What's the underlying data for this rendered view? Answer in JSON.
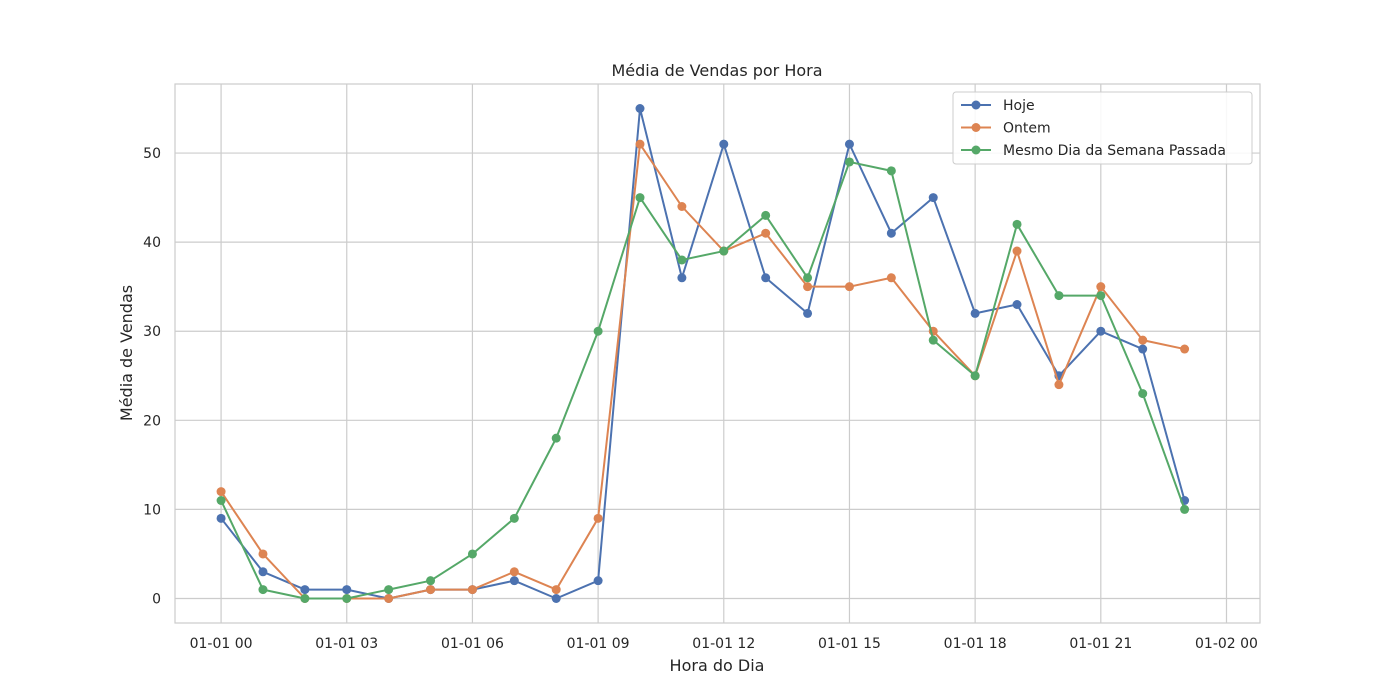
{
  "chart_data": {
    "type": "line",
    "title": "Média de Vendas por Hora",
    "xlabel": "Hora do Dia",
    "ylabel": "Média de Vendas",
    "x": [
      "00:00",
      "01:00",
      "02:00",
      "03:00",
      "04:00",
      "05:00",
      "06:00",
      "07:00",
      "08:00",
      "09:00",
      "10:00",
      "11:00",
      "12:00",
      "13:00",
      "14:00",
      "15:00",
      "16:00",
      "17:00",
      "18:00",
      "19:00",
      "20:00",
      "21:00",
      "22:00",
      "23:00"
    ],
    "x_tick_labels": [
      "01-01 00",
      "01-01 03",
      "01-01 06",
      "01-01 09",
      "01-01 12",
      "01-01 15",
      "01-01 18",
      "01-01 21",
      "01-02 00"
    ],
    "xlim_hours": [
      -1.1,
      24.8
    ],
    "y_ticks": [
      0,
      10,
      20,
      30,
      40,
      50
    ],
    "ylim": [
      -2.75,
      57.75
    ],
    "grid": true,
    "legend_position": "top-right",
    "series": [
      {
        "name": "Hoje",
        "color": "#4c72b0",
        "values": [
          9,
          3,
          1,
          1,
          0,
          1,
          1,
          2,
          0,
          2,
          55,
          36,
          51,
          36,
          32,
          51,
          41,
          45,
          32,
          33,
          25,
          30,
          28,
          11
        ]
      },
      {
        "name": "Ontem",
        "color": "#dd8452",
        "values": [
          12,
          5,
          0,
          0,
          0,
          1,
          1,
          3,
          1,
          9,
          51,
          44,
          39,
          41,
          35,
          35,
          36,
          30,
          25,
          39,
          24,
          35,
          29,
          28
        ]
      },
      {
        "name": "Mesmo Dia da Semana Passada",
        "color": "#55a868",
        "values": [
          11,
          1,
          0,
          0,
          1,
          2,
          5,
          9,
          18,
          30,
          45,
          38,
          39,
          43,
          36,
          49,
          48,
          29,
          25,
          42,
          34,
          34,
          23,
          10
        ]
      }
    ]
  }
}
